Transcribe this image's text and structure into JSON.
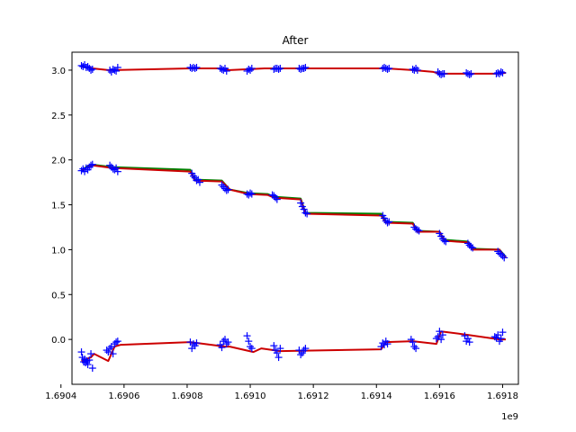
{
  "chart_data": {
    "type": "line",
    "title": "After",
    "xlabel": "",
    "ylabel": "",
    "x_offset_label": "1e9",
    "xlim": [
      1690435000,
      1691850000
    ],
    "ylim": [
      -0.5,
      3.2
    ],
    "x_ticks": [
      1690400000,
      1690600000,
      1690800000,
      1691000000,
      1691200000,
      1691400000,
      1691600000,
      1691800000
    ],
    "x_tick_labels": [
      "1.6904",
      "1.6906",
      "1.6908",
      "1.6910",
      "1.6912",
      "1.6914",
      "1.6916",
      "1.6918"
    ],
    "y_ticks": [
      0.0,
      0.5,
      1.0,
      1.5,
      2.0,
      2.5,
      3.0
    ],
    "y_tick_labels": [
      "0.0",
      "0.5",
      "1.0",
      "1.5",
      "2.0",
      "2.5",
      "3.0"
    ],
    "grid": false,
    "legend": "none",
    "lines": [
      {
        "color": "#008000",
        "x": [
          1690465000,
          1690475000,
          1690485000,
          1690495000,
          1690565000,
          1690810000,
          1690825000,
          1690910000,
          1690935000,
          1690995000,
          1691055000,
          1691075000,
          1691160000,
          1691175000,
          1691415000,
          1691430000,
          1691515000,
          1691530000,
          1691600000,
          1691615000,
          1691690000,
          1691705000,
          1691790000,
          1691800000,
          1691810000
        ],
        "y": [
          1.89,
          1.91,
          1.93,
          1.95,
          1.92,
          1.89,
          1.78,
          1.77,
          1.67,
          1.63,
          1.62,
          1.59,
          1.57,
          1.41,
          1.4,
          1.31,
          1.3,
          1.21,
          1.2,
          1.11,
          1.09,
          1.01,
          1.0,
          0.96,
          0.92
        ]
      },
      {
        "color": "#cc0000",
        "x": [
          1690465000,
          1690485000,
          1690500000,
          1690565000,
          1690810000,
          1690825000,
          1690910000,
          1690935000,
          1690995000,
          1691055000,
          1691075000,
          1691160000,
          1691175000,
          1691415000,
          1691430000,
          1691515000,
          1691530000,
          1691600000,
          1691615000,
          1691690000,
          1691705000,
          1691790000,
          1691800000,
          1691810000
        ],
        "y": [
          1.88,
          1.92,
          1.94,
          1.91,
          1.87,
          1.77,
          1.76,
          1.67,
          1.62,
          1.61,
          1.58,
          1.56,
          1.4,
          1.38,
          1.3,
          1.29,
          1.2,
          1.2,
          1.1,
          1.08,
          1.0,
          1.0,
          0.95,
          0.91
        ]
      },
      {
        "color": "#cc0000",
        "x": [
          1690465000,
          1690500000,
          1690550000,
          1690570000,
          1690810000,
          1690905000,
          1690935000,
          1690995000,
          1691045000,
          1691095000,
          1691160000,
          1691430000,
          1691515000,
          1691580000,
          1691600000,
          1691690000,
          1691790000,
          1691810000
        ],
        "y": [
          3.04,
          3.02,
          3.0,
          3.0,
          3.02,
          3.02,
          3.0,
          3.01,
          3.02,
          3.02,
          3.02,
          3.02,
          3.0,
          2.98,
          2.96,
          2.96,
          2.96,
          2.97
        ]
      },
      {
        "color": "#cc0000",
        "x": [
          1690465000,
          1690495000,
          1690505000,
          1690550000,
          1690570000,
          1690590000,
          1690810000,
          1690920000,
          1690935000,
          1691010000,
          1691035000,
          1691095000,
          1691415000,
          1691430000,
          1691515000,
          1691590000,
          1691605000,
          1691690000,
          1691790000,
          1691810000
        ],
        "y": [
          -0.24,
          -0.2,
          -0.16,
          -0.24,
          -0.08,
          -0.06,
          -0.03,
          -0.08,
          -0.08,
          -0.14,
          -0.1,
          -0.13,
          -0.11,
          -0.03,
          -0.02,
          -0.05,
          0.09,
          0.05,
          0.0,
          0.0
        ]
      }
    ],
    "scatter": {
      "color": "#0000ff",
      "marker": "+",
      "series": [
        {
          "x": [
            1690465000,
            1690470000,
            1690475000,
            1690480000,
            1690485000,
            1690490000,
            1690495000,
            1690500000,
            1690555000,
            1690560000,
            1690565000,
            1690570000,
            1690575000,
            1690580000,
            1690810000,
            1690815000,
            1690820000,
            1690825000,
            1690830000,
            1690905000,
            1690910000,
            1690915000,
            1690920000,
            1690925000,
            1690990000,
            1690995000,
            1691000000,
            1691005000,
            1691075000,
            1691080000,
            1691085000,
            1691090000,
            1691095000,
            1691155000,
            1691160000,
            1691165000,
            1691170000,
            1691175000,
            1691420000,
            1691425000,
            1691430000,
            1691435000,
            1691440000,
            1691515000,
            1691520000,
            1691525000,
            1691530000,
            1691595000,
            1691600000,
            1691605000,
            1691610000,
            1691615000,
            1691685000,
            1691690000,
            1691695000,
            1691700000,
            1691780000,
            1691785000,
            1691790000,
            1691795000,
            1691800000
          ],
          "y": [
            3.05,
            3.04,
            3.06,
            3.03,
            3.04,
            3.02,
            3.0,
            3.01,
            3.0,
            2.98,
            3.01,
            3.0,
            2.99,
            3.03,
            3.03,
            3.02,
            3.03,
            3.02,
            3.03,
            3.02,
            3.01,
            3.0,
            3.02,
            2.99,
            2.99,
            3.01,
            3.0,
            3.02,
            3.01,
            3.02,
            3.02,
            3.01,
            3.02,
            3.02,
            3.01,
            3.02,
            3.02,
            3.03,
            3.02,
            3.03,
            3.02,
            3.01,
            3.02,
            3.01,
            3.0,
            3.02,
            3.0,
            2.98,
            2.96,
            2.95,
            2.96,
            2.96,
            2.97,
            2.96,
            2.95,
            2.96,
            2.96,
            2.97,
            2.96,
            2.98,
            2.97
          ]
        },
        {
          "x": [
            1690465000,
            1690470000,
            1690475000,
            1690480000,
            1690485000,
            1690490000,
            1690495000,
            1690500000,
            1690555000,
            1690560000,
            1690565000,
            1690570000,
            1690575000,
            1690580000,
            1690815000,
            1690820000,
            1690825000,
            1690830000,
            1690835000,
            1690840000,
            1690910000,
            1690915000,
            1690920000,
            1690925000,
            1690930000,
            1690990000,
            1690995000,
            1691000000,
            1691005000,
            1691070000,
            1691075000,
            1691080000,
            1691085000,
            1691160000,
            1691165000,
            1691170000,
            1691175000,
            1691180000,
            1691420000,
            1691425000,
            1691430000,
            1691435000,
            1691440000,
            1691520000,
            1691525000,
            1691530000,
            1691535000,
            1691600000,
            1691605000,
            1691610000,
            1691615000,
            1691620000,
            1691690000,
            1691695000,
            1691700000,
            1691705000,
            1691785000,
            1691790000,
            1691795000,
            1691800000,
            1691805000
          ],
          "y": [
            1.88,
            1.9,
            1.87,
            1.91,
            1.89,
            1.92,
            1.94,
            1.95,
            1.94,
            1.92,
            1.9,
            1.89,
            1.91,
            1.87,
            1.85,
            1.82,
            1.8,
            1.77,
            1.78,
            1.75,
            1.72,
            1.7,
            1.68,
            1.66,
            1.67,
            1.62,
            1.61,
            1.63,
            1.62,
            1.61,
            1.6,
            1.58,
            1.56,
            1.52,
            1.48,
            1.45,
            1.41,
            1.4,
            1.38,
            1.35,
            1.32,
            1.3,
            1.31,
            1.25,
            1.23,
            1.22,
            1.21,
            1.18,
            1.15,
            1.12,
            1.1,
            1.09,
            1.07,
            1.05,
            1.03,
            1.02,
            0.98,
            0.96,
            0.95,
            0.93,
            0.91
          ]
        },
        {
          "x": [
            1690465000,
            1690468000,
            1690472000,
            1690475000,
            1690478000,
            1690482000,
            1690485000,
            1690490000,
            1690495000,
            1690500000,
            1690545000,
            1690550000,
            1690555000,
            1690560000,
            1690565000,
            1690570000,
            1690575000,
            1690580000,
            1690810000,
            1690815000,
            1690820000,
            1690825000,
            1690830000,
            1690905000,
            1690910000,
            1690915000,
            1690920000,
            1690925000,
            1690930000,
            1690990000,
            1690995000,
            1691000000,
            1691005000,
            1691075000,
            1691080000,
            1691085000,
            1691090000,
            1691095000,
            1691155000,
            1691160000,
            1691165000,
            1691170000,
            1691175000,
            1691415000,
            1691420000,
            1691425000,
            1691430000,
            1691435000,
            1691510000,
            1691515000,
            1691520000,
            1691525000,
            1691590000,
            1691595000,
            1691600000,
            1691605000,
            1691610000,
            1691680000,
            1691685000,
            1691690000,
            1691695000,
            1691775000,
            1691780000,
            1691785000,
            1691790000,
            1691795000,
            1691800000
          ],
          "y": [
            -0.14,
            -0.2,
            -0.25,
            -0.22,
            -0.26,
            -0.24,
            -0.28,
            -0.23,
            -0.16,
            -0.32,
            -0.12,
            -0.14,
            -0.1,
            -0.08,
            -0.16,
            -0.05,
            -0.03,
            -0.02,
            -0.03,
            -0.1,
            -0.05,
            -0.07,
            -0.04,
            -0.06,
            -0.09,
            -0.02,
            0.0,
            -0.05,
            -0.03,
            0.04,
            -0.02,
            -0.08,
            -0.1,
            -0.07,
            -0.12,
            -0.15,
            -0.2,
            -0.1,
            -0.12,
            -0.17,
            -0.15,
            -0.12,
            -0.1,
            -0.08,
            -0.04,
            -0.06,
            -0.02,
            -0.05,
            0.0,
            -0.03,
            -0.08,
            -0.1,
            0.01,
            0.03,
            0.09,
            0.0,
            0.05,
            0.04,
            -0.02,
            0.01,
            -0.03,
            0.03,
            0.02,
            0.05,
            -0.02,
            0.01,
            0.08
          ]
        }
      ]
    }
  }
}
